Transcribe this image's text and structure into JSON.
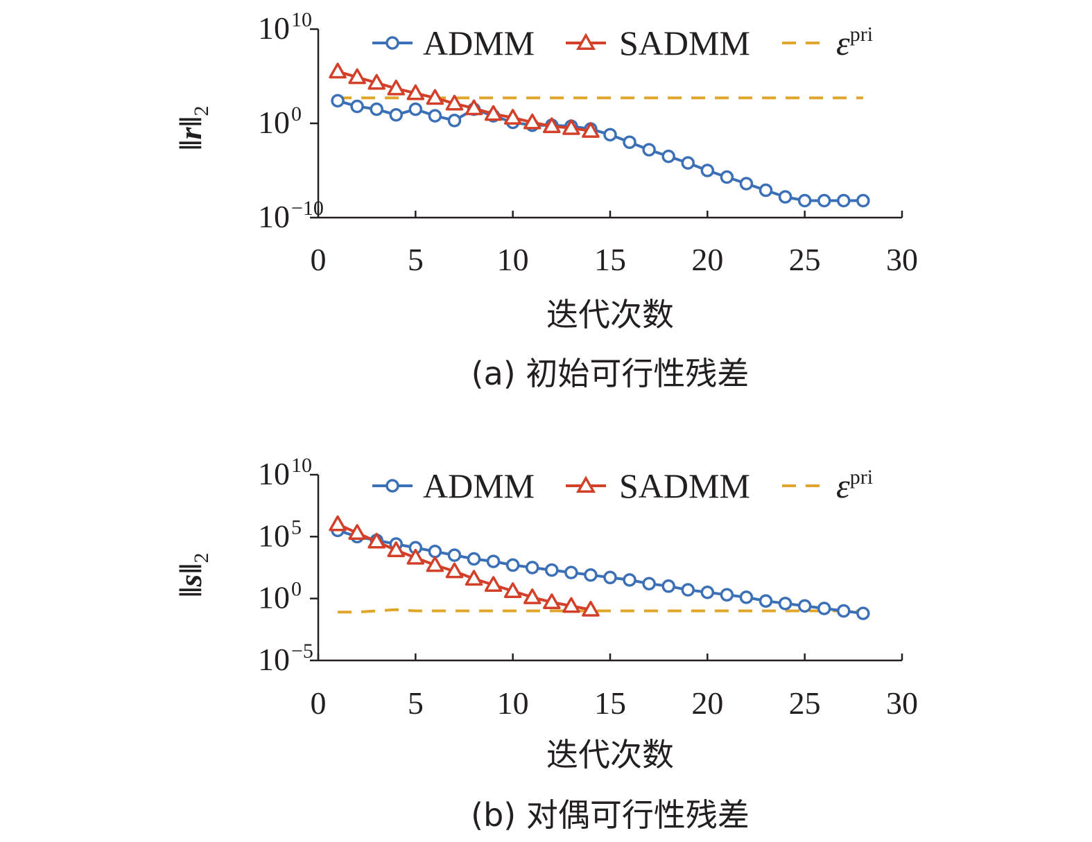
{
  "chart_data": [
    {
      "id": "a",
      "type": "line",
      "yscale": "log",
      "caption": "(a) 初始可行性残差",
      "xlabel": "迭代次数",
      "ylabel": {
        "main": "‖r‖",
        "sub": "2"
      },
      "xlim": [
        0,
        30
      ],
      "xticks": [
        0,
        5,
        10,
        15,
        20,
        25,
        30
      ],
      "xtick_labels": [
        "0",
        "5",
        "10",
        "15",
        "20",
        "25",
        "30"
      ],
      "ylim_exp": [
        -10,
        10
      ],
      "yticks": [
        {
          "exp": 10,
          "base": "10",
          "sup": "10"
        },
        {
          "exp": 0,
          "base": "10",
          "sup": "0"
        },
        {
          "exp": -10,
          "base": "10",
          "sup": "−10"
        }
      ],
      "legend_position": "top",
      "series": [
        {
          "name": "ADMM",
          "key": "admm",
          "color": "#3b6fb6",
          "marker": "circle",
          "x": [
            1,
            2,
            3,
            4,
            5,
            6,
            7,
            8,
            9,
            10,
            11,
            12,
            13,
            14,
            15,
            16,
            17,
            18,
            19,
            20,
            21,
            22,
            23,
            24,
            25,
            26,
            27,
            28
          ],
          "log10_y": [
            2.4,
            1.8,
            1.5,
            0.9,
            1.5,
            0.8,
            0.3,
            1.5,
            0.8,
            0.1,
            -0.2,
            -0.2,
            -0.3,
            -0.6,
            -1.2,
            -2.0,
            -2.8,
            -3.5,
            -4.2,
            -5.0,
            -5.7,
            -6.4,
            -7.1,
            -7.8,
            -8.2,
            -8.2,
            -8.2,
            -8.2
          ]
        },
        {
          "name": "SADMM",
          "key": "sadmm",
          "color": "#d2402a",
          "marker": "triangle",
          "x": [
            1,
            2,
            3,
            4,
            5,
            6,
            7,
            8,
            9,
            10,
            11,
            12,
            13,
            14
          ],
          "log10_y": [
            5.5,
            4.9,
            4.3,
            3.7,
            3.2,
            2.7,
            2.1,
            1.6,
            1.0,
            0.6,
            0.1,
            -0.3,
            -0.5,
            -0.8
          ]
        },
        {
          "name": "ε",
          "sup": "pri",
          "key": "eps",
          "color": "#e0a52b",
          "marker": "none",
          "dashed": true,
          "x": [
            1,
            28
          ],
          "log10_y": [
            2.7,
            2.7
          ]
        }
      ]
    },
    {
      "id": "b",
      "type": "line",
      "yscale": "log",
      "caption": "(b) 对偶可行性残差",
      "xlabel": "迭代次数",
      "ylabel": {
        "main": "‖s‖",
        "sub": "2"
      },
      "xlim": [
        0,
        30
      ],
      "xticks": [
        0,
        5,
        10,
        15,
        20,
        25,
        30
      ],
      "xtick_labels": [
        "0",
        "5",
        "10",
        "15",
        "20",
        "25",
        "30"
      ],
      "ylim_exp": [
        -5,
        10
      ],
      "yticks": [
        {
          "exp": 10,
          "base": "10",
          "sup": "10"
        },
        {
          "exp": 5,
          "base": "10",
          "sup": "5"
        },
        {
          "exp": 0,
          "base": "10",
          "sup": "0"
        },
        {
          "exp": -5,
          "base": "10",
          "sup": "−5"
        }
      ],
      "legend_position": "top",
      "series": [
        {
          "name": "ADMM",
          "key": "admm",
          "color": "#3b6fb6",
          "marker": "circle",
          "x": [
            1,
            2,
            3,
            4,
            5,
            6,
            7,
            8,
            9,
            10,
            11,
            12,
            13,
            14,
            15,
            16,
            17,
            18,
            19,
            20,
            21,
            22,
            23,
            24,
            25,
            26,
            27,
            28
          ],
          "log10_y": [
            5.5,
            5.0,
            4.7,
            4.4,
            4.1,
            3.8,
            3.5,
            3.2,
            3.0,
            2.7,
            2.5,
            2.3,
            2.1,
            1.9,
            1.7,
            1.5,
            1.2,
            1.0,
            0.7,
            0.5,
            0.3,
            0.1,
            -0.2,
            -0.4,
            -0.6,
            -0.8,
            -1.0,
            -1.2
          ]
        },
        {
          "name": "SADMM",
          "key": "sadmm",
          "color": "#d2402a",
          "marker": "triangle",
          "x": [
            1,
            2,
            3,
            4,
            5,
            6,
            7,
            8,
            9,
            10,
            11,
            12,
            13,
            14
          ],
          "log10_y": [
            6.0,
            5.3,
            4.6,
            3.9,
            3.3,
            2.7,
            2.2,
            1.6,
            1.1,
            0.6,
            0.1,
            -0.3,
            -0.6,
            -0.9
          ]
        },
        {
          "name": "ε",
          "sup": "pri",
          "key": "eps",
          "color": "#e0a52b",
          "marker": "none",
          "dashed": true,
          "x": [
            1,
            2,
            3,
            4,
            5,
            6,
            7,
            8,
            9,
            10,
            11,
            12,
            13,
            14,
            15,
            16,
            17,
            18,
            19,
            20,
            21,
            22,
            23,
            24,
            25,
            26,
            27,
            28
          ],
          "log10_y": [
            -1.1,
            -1.1,
            -1.0,
            -0.9,
            -1.0,
            -1.0,
            -1.0,
            -1.0,
            -1.0,
            -1.0,
            -1.0,
            -1.0,
            -1.0,
            -1.0,
            -1.0,
            -1.0,
            -1.0,
            -1.0,
            -1.0,
            -1.0,
            -1.0,
            -1.0,
            -1.0,
            -1.0,
            -1.0,
            -1.0,
            -1.0,
            -1.0
          ]
        }
      ]
    }
  ]
}
